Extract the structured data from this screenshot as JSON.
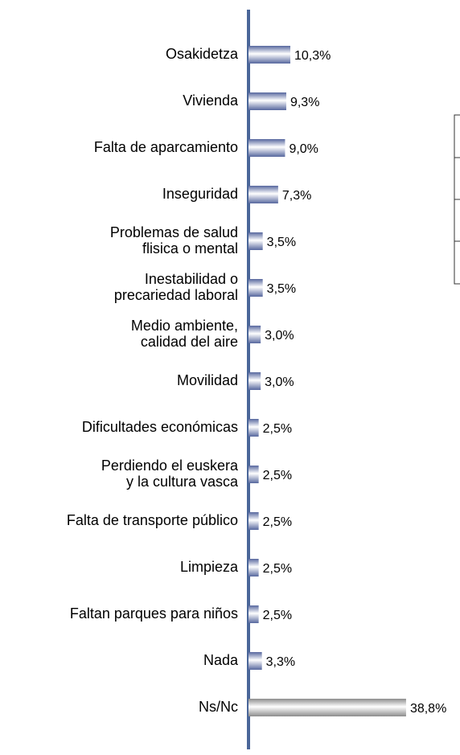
{
  "chart_data": {
    "type": "bar",
    "categories": [
      "Osakidetza",
      "Vivienda",
      "Falta de aparcamiento",
      "Inseguridad",
      "Problemas de salud\nflisica o mental",
      "Inestabilidad o\nprecariedad laboral",
      "Medio ambiente,\ncalidad del aire",
      "Movilidad",
      "Dificultades económicas",
      "Perdiendo el euskera\ny la cultura vasca",
      "Falta de transporte público",
      "Limpieza",
      "Faltan parques para niños",
      "Nada",
      "Ns/Nc"
    ],
    "values": [
      10.3,
      9.3,
      9.0,
      7.3,
      3.5,
      3.5,
      3.0,
      3.0,
      2.5,
      2.5,
      2.5,
      2.5,
      2.5,
      3.3,
      38.8
    ],
    "value_labels": [
      "10,3%",
      "9,3%",
      "9,0%",
      "7,3%",
      "3,5%",
      "3,5%",
      "3,0%",
      "3,0%",
      "2,5%",
      "2,5%",
      "2,5%",
      "2,5%",
      "2,5%",
      "3,3%",
      "38,8%"
    ],
    "colors": [
      "#56679e",
      "#56679e",
      "#56679e",
      "#56679e",
      "#56679e",
      "#56679e",
      "#56679e",
      "#56679e",
      "#56679e",
      "#56679e",
      "#56679e",
      "#56679e",
      "#56679e",
      "#56679e",
      "#8c8c8c"
    ]
  }
}
